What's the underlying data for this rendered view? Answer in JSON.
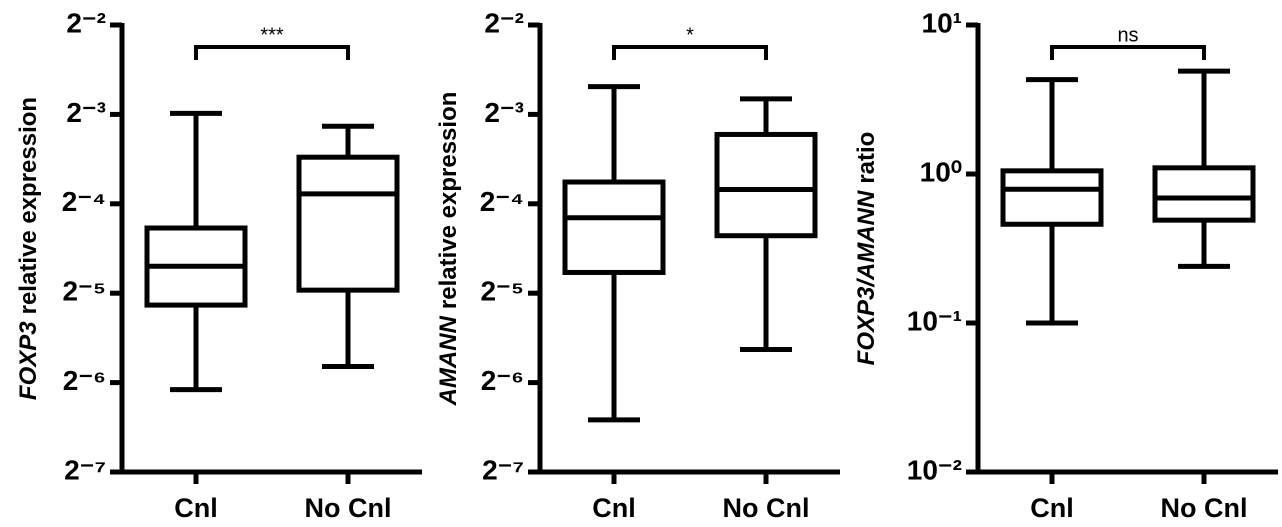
{
  "chart_data": [
    {
      "type": "box",
      "ylabel": [
        {
          "text": "FOXP3",
          "italic": true
        },
        {
          "text": "relative expression",
          "italic": false
        }
      ],
      "categories": [
        "Cnl",
        "No Cnl"
      ],
      "yscale": "log",
      "color": "#000000",
      "boxes": [
        {
          "min": 0.0148,
          "q1": 0.0285,
          "median": 0.0385,
          "q3": 0.0518,
          "max": 0.126
        },
        {
          "min": 0.0177,
          "q1": 0.032,
          "median": 0.0675,
          "q3": 0.0897,
          "max": 0.114
        }
      ],
      "ylim": [
        0.0078125,
        0.25
      ],
      "yticks": [
        {
          "value": 0.25,
          "label": "2⁻²"
        },
        {
          "value": 0.125,
          "label": "2⁻³"
        },
        {
          "value": 0.0625,
          "label": "2⁻⁴"
        },
        {
          "value": 0.03125,
          "label": "2⁻⁵"
        },
        {
          "value": 0.015625,
          "label": "2⁻⁶"
        },
        {
          "value": 0.0078125,
          "label": "2⁻⁷"
        }
      ],
      "annotation": "***"
    },
    {
      "type": "box",
      "ylabel": [
        {
          "text": "AMANN",
          "italic": true
        },
        {
          "text": "relative expression",
          "italic": false
        }
      ],
      "categories": [
        "Cnl",
        "No Cnl"
      ],
      "yscale": "log",
      "color": "#000000",
      "boxes": [
        {
          "min": 0.0117,
          "q1": 0.0367,
          "median": 0.0561,
          "q3": 0.074,
          "max": 0.155
        },
        {
          "min": 0.0202,
          "q1": 0.0488,
          "median": 0.0698,
          "q3": 0.107,
          "max": 0.141
        }
      ],
      "ylim": [
        0.0078125,
        0.25
      ],
      "yticks": [
        {
          "value": 0.25,
          "label": "2⁻²"
        },
        {
          "value": 0.125,
          "label": "2⁻³"
        },
        {
          "value": 0.0625,
          "label": "2⁻⁴"
        },
        {
          "value": 0.03125,
          "label": "2⁻⁵"
        },
        {
          "value": 0.015625,
          "label": "2⁻⁶"
        },
        {
          "value": 0.0078125,
          "label": "2⁻⁷"
        }
      ],
      "annotation": "*"
    },
    {
      "type": "box",
      "ylabel": [
        {
          "text": "FOXP3/AMANN",
          "italic": true
        },
        {
          "text": "ratio",
          "italic": false
        }
      ],
      "categories": [
        "Cnl",
        "No Cnl"
      ],
      "yscale": "log",
      "color": "#000000",
      "boxes": [
        {
          "min": 0.1,
          "q1": 0.46,
          "median": 0.79,
          "q3": 1.05,
          "max": 4.3
        },
        {
          "min": 0.24,
          "q1": 0.49,
          "median": 0.69,
          "q3": 1.1,
          "max": 4.9
        }
      ],
      "ylim": [
        0.01,
        10
      ],
      "yticks": [
        {
          "value": 10,
          "label": "10¹"
        },
        {
          "value": 1,
          "label": "10⁰"
        },
        {
          "value": 0.1,
          "label": "10⁻¹"
        },
        {
          "value": 0.01,
          "label": "10⁻²"
        }
      ],
      "annotation": "ns"
    }
  ]
}
